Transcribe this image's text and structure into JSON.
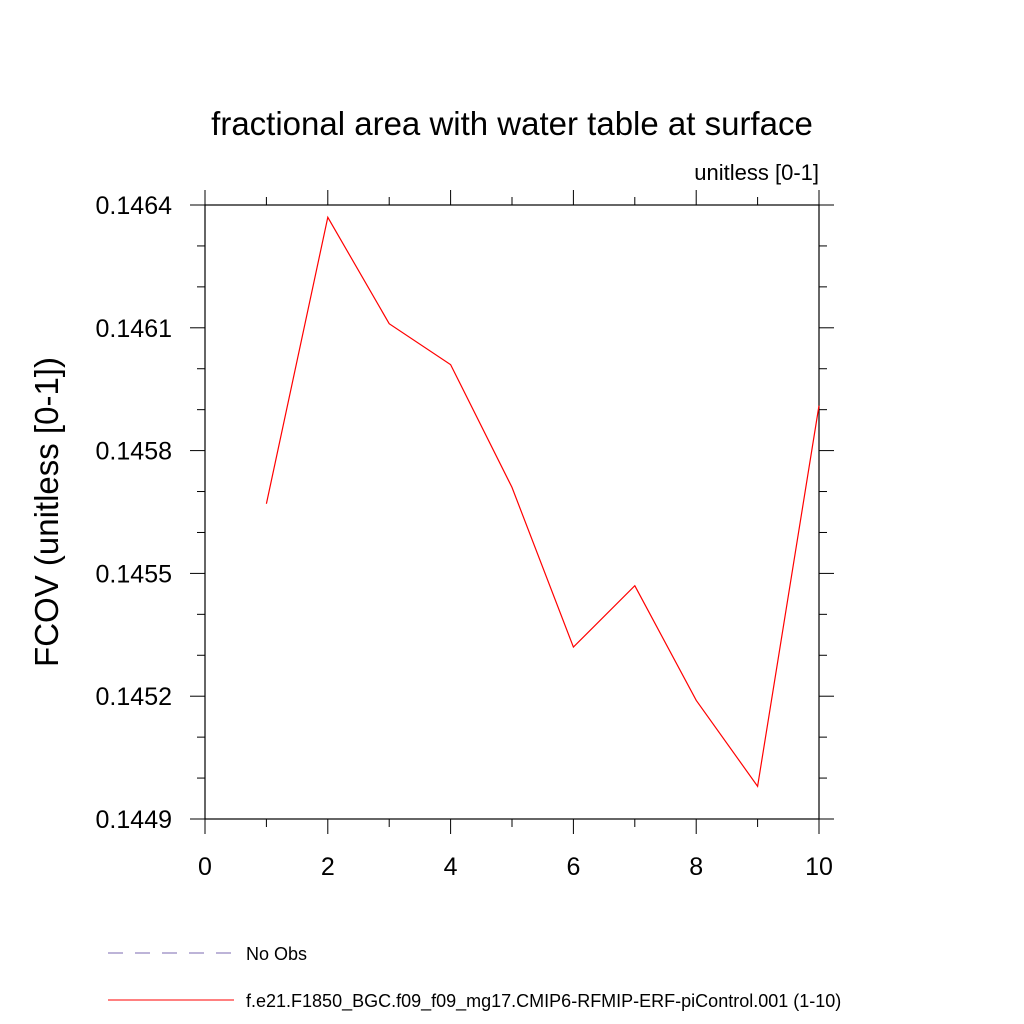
{
  "chart_data": {
    "type": "line",
    "title": "fractional area with water table at surface",
    "subtitle": "unitless [0-1]",
    "xlabel": "",
    "ylabel": "FCOV  (unitless [0-1])",
    "xlim": [
      0,
      10
    ],
    "ylim": [
      0.1449,
      0.1464
    ],
    "x_major_ticks": [
      0,
      2,
      4,
      6,
      8,
      10
    ],
    "x_tick_labels": [
      "0",
      "2",
      "4",
      "6",
      "8",
      "10"
    ],
    "x_minor_ticks": [
      1,
      3,
      5,
      7,
      9
    ],
    "y_major_ticks": [
      0.1449,
      0.1452,
      0.1455,
      0.1458,
      0.1461,
      0.1464
    ],
    "y_tick_labels": [
      "0.1449",
      "0.1452",
      "0.1455",
      "0.1458",
      "0.1461",
      "0.1464"
    ],
    "y_minor_ticks": [
      0.145,
      0.1451,
      0.1453,
      0.1454,
      0.1456,
      0.1457,
      0.1459,
      0.146,
      0.1462,
      0.1463
    ],
    "grid": false,
    "legend_position": "bottom",
    "series": [
      {
        "name": "f.e21.F1850_BGC.f09_f09_mg17.CMIP6-RFMIP-ERF-piControl.001 (1-10)",
        "color": "#ff0000",
        "dash": "solid",
        "x": [
          1,
          2,
          3,
          4,
          5,
          6,
          7,
          8,
          9,
          10
        ],
        "y": [
          0.14567,
          0.14637,
          0.14611,
          0.14601,
          0.14571,
          0.14532,
          0.14547,
          0.14519,
          0.14498,
          0.14591
        ]
      }
    ],
    "legend": [
      {
        "label": "No Obs",
        "color": "#7b68b0",
        "dash": "dashed"
      },
      {
        "label": "f.e21.F1850_BGC.f09_f09_mg17.CMIP6-RFMIP-ERF-piControl.001 (1-10)",
        "color": "#ff0000",
        "dash": "solid"
      }
    ]
  }
}
